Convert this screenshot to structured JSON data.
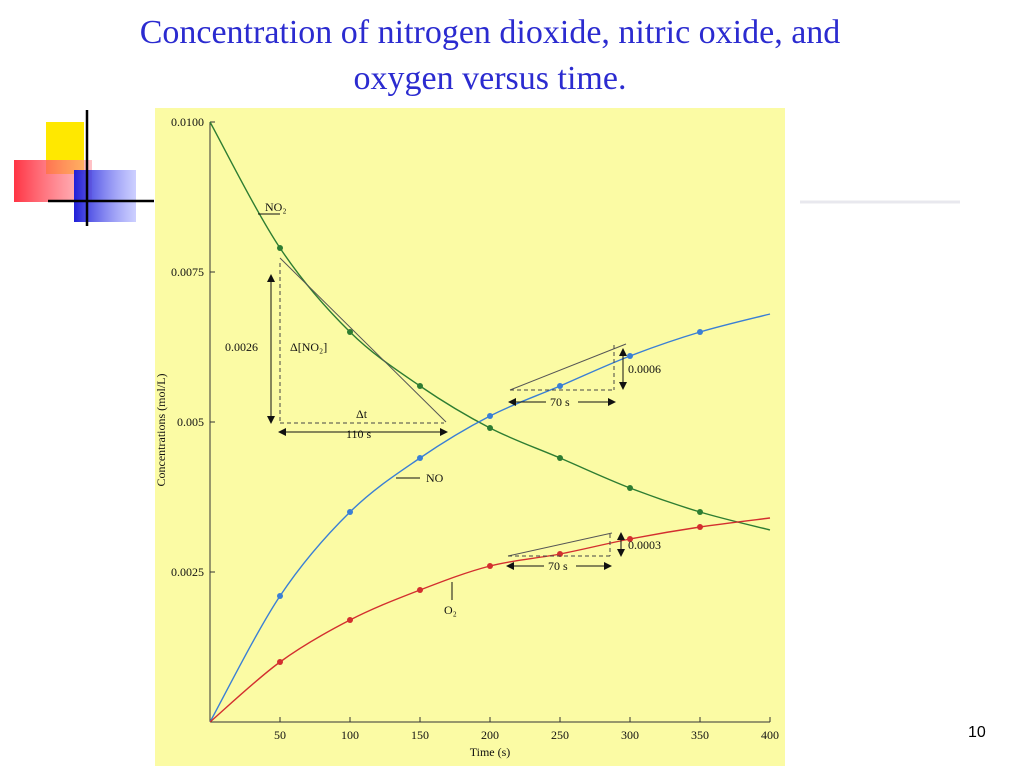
{
  "slide": {
    "title_line1": "Concentration of nitrogen dioxide, nitric oxide, and",
    "title_line2": "oxygen versus time.",
    "page_number": "10"
  },
  "colors": {
    "title": "#2b2bd0",
    "plot_background": "#fbfba4",
    "no2": "#2e7d32",
    "no": "#3a7fd5",
    "o2": "#d32f2f",
    "deco_yellow": "#ffe800",
    "deco_red": "#ff3344",
    "deco_blue": "#2020e0"
  },
  "chart_data": {
    "type": "line",
    "xlabel": "Time (s)",
    "ylabel": "Concentrations (mol/L)",
    "xlim": [
      0,
      400
    ],
    "ylim": [
      0,
      0.01
    ],
    "x_ticks": [
      50,
      100,
      150,
      200,
      250,
      300,
      350,
      400
    ],
    "y_ticks": [
      0.0025,
      0.005,
      0.0075,
      0.01
    ],
    "y_tick_labels": [
      "0.0025",
      "0.005",
      "0.0075",
      "0.0100"
    ],
    "x": [
      0,
      50,
      100,
      150,
      200,
      250,
      300,
      350,
      400
    ],
    "series": [
      {
        "name": "NO2",
        "label": "NO₂",
        "values": [
          0.01,
          0.0079,
          0.0065,
          0.0056,
          0.0049,
          0.0044,
          0.0039,
          0.0035,
          0.0032
        ]
      },
      {
        "name": "NO",
        "label": "NO",
        "values": [
          0.0,
          0.0021,
          0.0035,
          0.0044,
          0.0051,
          0.0056,
          0.0061,
          0.0065,
          0.0068
        ]
      },
      {
        "name": "O2",
        "label": "O₂",
        "values": [
          0.0,
          0.001,
          0.0017,
          0.0022,
          0.0026,
          0.0028,
          0.00305,
          0.00325,
          0.0034
        ]
      }
    ],
    "annotations": {
      "no2_delta_c": "0.0026",
      "no2_delta_label": "Δ[NO₂]",
      "no2_dt_label": "Δt",
      "no2_time_span": "110 s",
      "no_delta_c": "0.0006",
      "no_time_span": "70 s",
      "o2_delta_c": "0.0003",
      "o2_time_span": "70 s"
    }
  }
}
